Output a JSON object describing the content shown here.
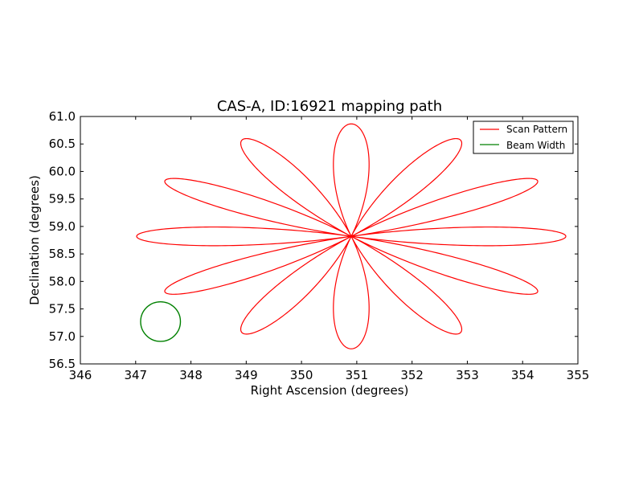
{
  "chart_data": {
    "type": "line",
    "title": "CAS-A, ID:16921 mapping path",
    "xlabel": "Right Ascension (degrees)",
    "ylabel": "Declination (degrees)",
    "xlim": [
      346,
      355
    ],
    "ylim": [
      56.5,
      61.0
    ],
    "xticks": [
      "346",
      "347",
      "348",
      "349",
      "350",
      "351",
      "352",
      "353",
      "354",
      "355"
    ],
    "yticks": [
      "56.5",
      "57.0",
      "57.5",
      "58.0",
      "58.5",
      "59.0",
      "59.5",
      "60.0",
      "60.5",
      "61.0"
    ],
    "legend": {
      "position": "top-right"
    },
    "series": [
      {
        "name": "Scan Pattern",
        "color": "#ff0000",
        "pattern": "rose-scan",
        "center": [
          350.9,
          58.82
        ],
        "petals": 12,
        "max_extent_deg": 2.0
      },
      {
        "name": "Beam Width",
        "color": "#008000",
        "pattern": "circle",
        "center": [
          347.45,
          57.27
        ],
        "radius_deg": 0.36
      }
    ]
  }
}
